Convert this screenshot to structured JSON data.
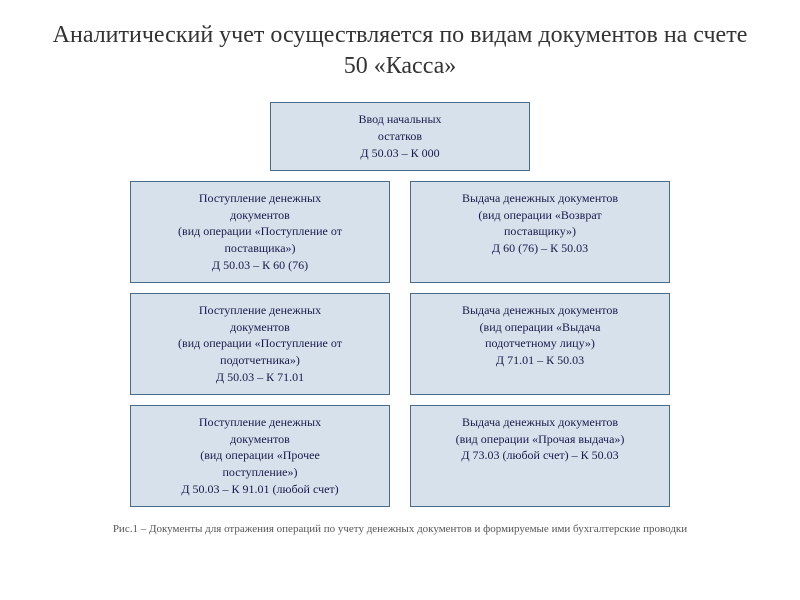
{
  "title": "Аналитический учет осуществляется по видам документов на счете 50 «Касса»",
  "diagram": {
    "type": "flowchart",
    "box_background": "#d6e1ec",
    "box_border_color": "#4a6a8a",
    "text_color": "#1a1a4a",
    "font_size": 12,
    "top_box": {
      "line1": "Ввод начальных",
      "line2": "остатков",
      "line3": "Д 50.03 – К 000"
    },
    "rows": [
      {
        "left": {
          "line1": "Поступление денежных",
          "line2": "документов",
          "line3": "(вид операции «Поступление от",
          "line4": "поставщика»)",
          "line5": "Д 50.03 – К 60 (76)"
        },
        "right": {
          "line1": "Выдача денежных документов",
          "line2": "(вид операции «Возврат",
          "line3": "поставщику»)",
          "line4": "Д 60 (76) – К 50.03"
        }
      },
      {
        "left": {
          "line1": "Поступление денежных",
          "line2": "документов",
          "line3": "(вид операции «Поступление от",
          "line4": "подотчетника»)",
          "line5": "Д 50.03 – К 71.01"
        },
        "right": {
          "line1": "Выдача денежных документов",
          "line2": "(вид операции «Выдача",
          "line3": "подотчетному лицу»)",
          "line4": "Д 71.01 – К 50.03"
        }
      },
      {
        "left": {
          "line1": "Поступление денежных",
          "line2": "документов",
          "line3": "(вид операции «Прочее",
          "line4": "поступление»)",
          "line5": "Д 50.03 – К 91.01 (любой счет)"
        },
        "right": {
          "line1": "Выдача денежных документов",
          "line2": "(вид операции «Прочая выдача»)",
          "line3": "Д 73.03 (любой счет) – К 50.03"
        }
      }
    ]
  },
  "caption": "Рис.1 – Документы для отражения операций по учету денежных документов и формируемые ими бухгалтерские проводки"
}
